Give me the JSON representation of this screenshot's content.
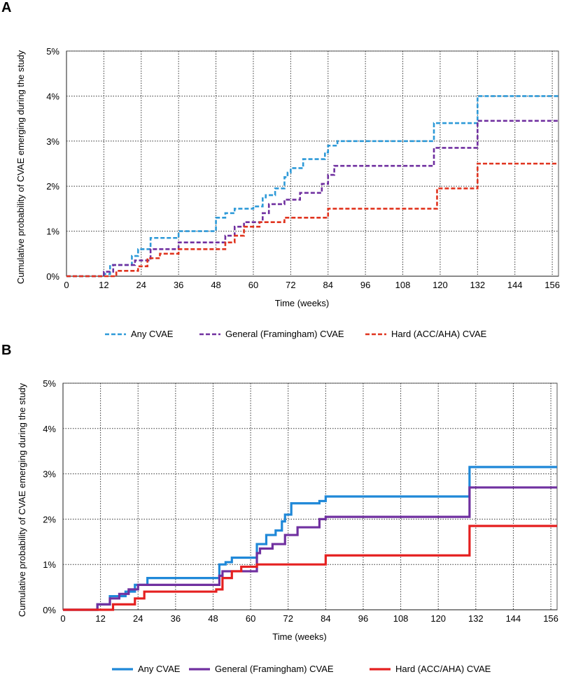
{
  "chart_data": [
    {
      "panel": "A",
      "type": "line",
      "line_style": "dashed",
      "xlabel": "Time (weeks)",
      "ylabel": "Cumulative probability of CVAE emerging during the study",
      "xlim": [
        0,
        158
      ],
      "ylim": [
        0,
        5
      ],
      "x_ticks": [
        0,
        12,
        24,
        36,
        48,
        60,
        72,
        84,
        96,
        108,
        120,
        132,
        144,
        156
      ],
      "y_ticks": [
        0,
        1,
        2,
        3,
        4,
        5
      ],
      "y_tick_labels": [
        "0%",
        "1%",
        "2%",
        "3%",
        "4%",
        "5%"
      ],
      "grid": true,
      "legend_position": "bottom",
      "series": [
        {
          "name": "Any CVAE",
          "color": "#2e9ad8",
          "x": [
            0,
            12,
            14,
            21,
            23,
            27,
            36,
            48,
            51,
            54,
            60,
            63,
            64,
            67,
            70,
            71,
            72,
            76,
            83,
            84,
            87,
            118,
            132,
            158
          ],
          "y": [
            0,
            0.05,
            0.25,
            0.45,
            0.6,
            0.85,
            1.0,
            1.3,
            1.4,
            1.5,
            1.55,
            1.75,
            1.8,
            1.95,
            2.2,
            2.3,
            2.4,
            2.6,
            2.75,
            2.9,
            3.0,
            3.4,
            4.0,
            4.0
          ]
        },
        {
          "name": "General (Framingham) CVAE",
          "color": "#7030a0",
          "x": [
            0,
            12,
            15,
            22,
            27,
            36,
            51,
            54,
            57,
            63,
            65,
            70,
            75,
            82,
            84,
            86,
            118,
            132,
            158
          ],
          "y": [
            0,
            0.1,
            0.25,
            0.35,
            0.6,
            0.75,
            0.9,
            1.1,
            1.2,
            1.4,
            1.6,
            1.7,
            1.85,
            2.05,
            2.25,
            2.45,
            2.85,
            3.45,
            3.45
          ]
        },
        {
          "name": "Hard (ACC/AHA) CVAE",
          "color": "#e0341f",
          "x": [
            0,
            16,
            23,
            26,
            30,
            36,
            51,
            54,
            57,
            62,
            70,
            84,
            119,
            132,
            158
          ],
          "y": [
            0,
            0.12,
            0.22,
            0.4,
            0.5,
            0.6,
            0.75,
            0.9,
            1.1,
            1.2,
            1.3,
            1.5,
            1.95,
            2.5,
            2.5
          ]
        }
      ]
    },
    {
      "panel": "B",
      "type": "line",
      "line_style": "solid",
      "xlabel": "Time (weeks)",
      "ylabel": "Cumulative probability of CVAE emerging during the study",
      "xlim": [
        0,
        158
      ],
      "ylim": [
        0,
        5
      ],
      "x_ticks": [
        0,
        12,
        24,
        36,
        48,
        60,
        72,
        84,
        96,
        108,
        120,
        132,
        144,
        156
      ],
      "y_ticks": [
        0,
        1,
        2,
        3,
        4,
        5
      ],
      "y_tick_labels": [
        "0%",
        "1%",
        "2%",
        "3%",
        "4%",
        "5%"
      ],
      "grid": true,
      "legend_position": "bottom",
      "series": [
        {
          "name": "Any CVAE",
          "color": "#1f88d8",
          "x": [
            0,
            11,
            15,
            20,
            23,
            27,
            50,
            52,
            54,
            62,
            65,
            68,
            70,
            71,
            73,
            82,
            84,
            130,
            158
          ],
          "y": [
            0,
            0.12,
            0.3,
            0.4,
            0.55,
            0.7,
            1.0,
            1.05,
            1.15,
            1.45,
            1.65,
            1.75,
            1.95,
            2.1,
            2.35,
            2.4,
            2.5,
            3.15,
            3.15
          ]
        },
        {
          "name": "General (Framingham) CVAE",
          "color": "#7030a0",
          "x": [
            0,
            11,
            15,
            18,
            21,
            24,
            50,
            51,
            62,
            63,
            67,
            71,
            75,
            82,
            84,
            130,
            158
          ],
          "y": [
            0,
            0.12,
            0.25,
            0.35,
            0.45,
            0.55,
            0.75,
            0.85,
            1.25,
            1.35,
            1.45,
            1.65,
            1.82,
            2.0,
            2.05,
            2.7,
            2.7
          ]
        },
        {
          "name": "Hard (ACC/AHA) CVAE",
          "color": "#e52020",
          "x": [
            0,
            16,
            23,
            26,
            49,
            51,
            54,
            57,
            62,
            84,
            130,
            158
          ],
          "y": [
            0,
            0.12,
            0.25,
            0.4,
            0.45,
            0.7,
            0.85,
            0.95,
            1.0,
            1.2,
            1.85,
            1.85
          ]
        }
      ]
    }
  ]
}
